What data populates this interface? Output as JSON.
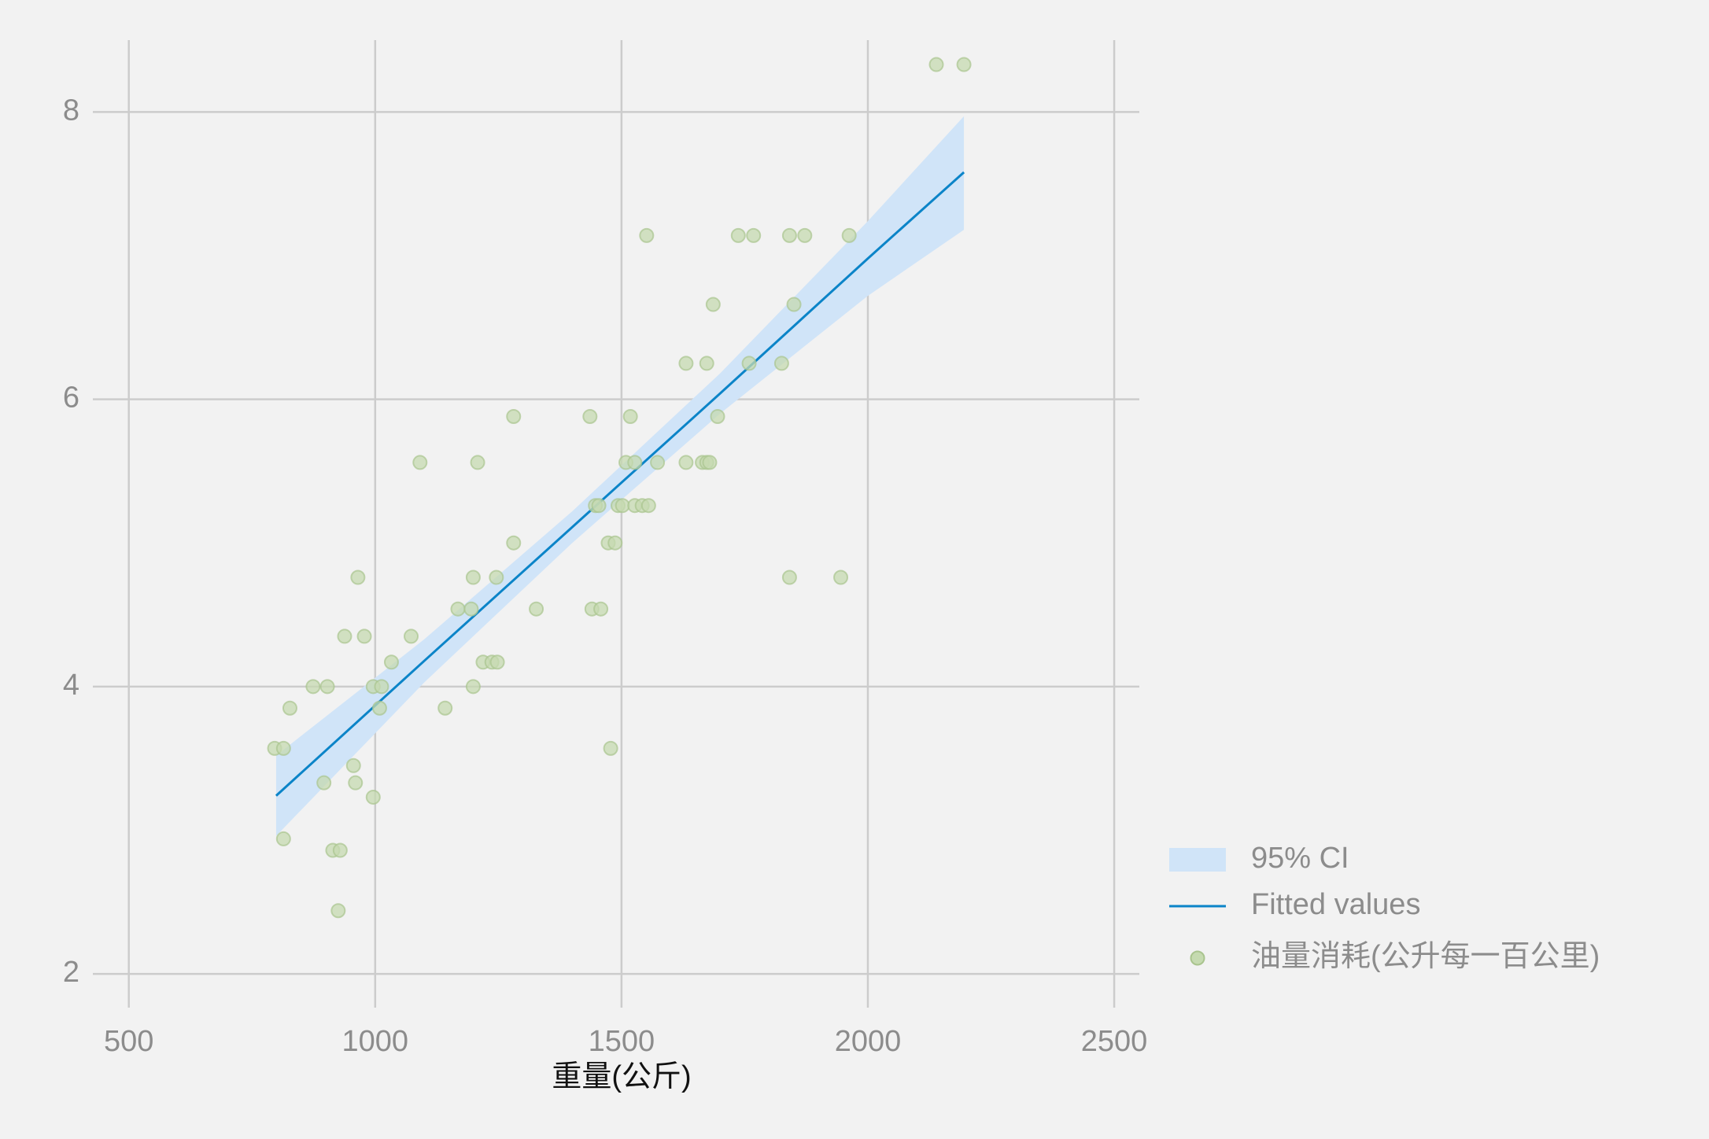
{
  "chart_data": {
    "type": "scatter",
    "xlabel": "重量(公斤)",
    "xlim": [
      427,
      2551
    ],
    "ylim": [
      1.765,
      8.5
    ],
    "xticks": [
      500,
      1000,
      1500,
      2000,
      2500
    ],
    "yticks": [
      2,
      4,
      6,
      8
    ],
    "grid": true,
    "legend": "lower right",
    "series": [
      {
        "name": "95% CI",
        "type": "band",
        "color": "#d0e4f8",
        "x": [
          799,
          1100,
          1400,
          1700,
          2000,
          2195
        ],
        "lower": [
          2.96,
          4.03,
          5.0,
          5.9,
          6.72,
          7.18
        ],
        "upper": [
          3.52,
          4.33,
          5.22,
          6.18,
          7.24,
          7.97
        ]
      },
      {
        "name": "Fitted values",
        "type": "line",
        "color": "#0b84c8",
        "x": [
          799,
          1100,
          1400,
          1700,
          2000,
          2195
        ],
        "values": [
          3.24,
          4.18,
          5.11,
          6.04,
          6.98,
          7.58
        ]
      },
      {
        "name": "油量消耗(公升每一百公里)",
        "type": "scatter",
        "color": "#c5dab0",
        "x": [
          2139,
          2195,
          1551,
          1737,
          1768,
          1841,
          1872,
          1962,
          1686,
          1850,
          1631,
          1673,
          1759,
          1825,
          1281,
          1436,
          1518,
          1695,
          1091,
          1208,
          1509,
          1527,
          1573,
          1631,
          1664,
          1673,
          1679,
          1447,
          1454,
          1493,
          1502,
          1527,
          1542,
          1555,
          1281,
          1473,
          1487,
          965,
          1199,
          1246,
          1841,
          1945,
          1168,
          1195,
          1327,
          1440,
          1458,
          938,
          978,
          1073,
          1033,
          1219,
          1237,
          1248,
          874,
          903,
          996,
          1013,
          1199,
          827,
          1009,
          1142,
          796,
          814,
          1478,
          956,
          896,
          960,
          996,
          814,
          914,
          929,
          925
        ],
        "values": [
          8.33,
          8.33,
          7.14,
          7.14,
          7.14,
          7.14,
          7.14,
          7.14,
          6.66,
          6.66,
          6.25,
          6.25,
          6.25,
          6.25,
          5.88,
          5.88,
          5.88,
          5.88,
          5.56,
          5.56,
          5.56,
          5.56,
          5.56,
          5.56,
          5.56,
          5.56,
          5.56,
          5.26,
          5.26,
          5.26,
          5.26,
          5.26,
          5.26,
          5.26,
          5.0,
          5.0,
          5.0,
          4.76,
          4.76,
          4.76,
          4.76,
          4.76,
          4.54,
          4.54,
          4.54,
          4.54,
          4.54,
          4.35,
          4.35,
          4.35,
          4.17,
          4.17,
          4.17,
          4.17,
          4.0,
          4.0,
          4.0,
          4.0,
          4.0,
          3.85,
          3.85,
          3.85,
          3.57,
          3.57,
          3.57,
          3.45,
          3.33,
          3.33,
          3.23,
          2.94,
          2.86,
          2.86,
          2.44
        ]
      }
    ]
  }
}
